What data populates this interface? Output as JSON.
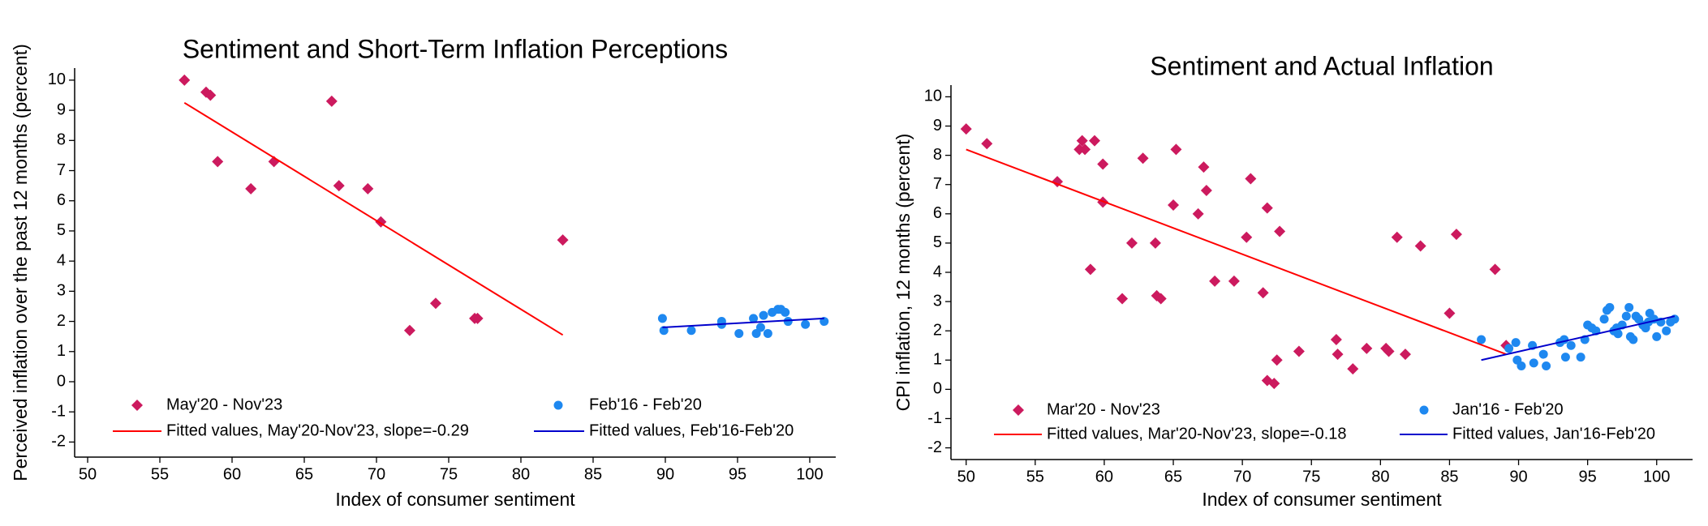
{
  "chart_data": [
    {
      "type": "scatter",
      "title": "Sentiment and Short-Term Inflation Perceptions",
      "x_label": "Index of consumer sentiment",
      "y_label": "Perceived inflation over the past 12 months (percent)",
      "xlim": [
        49.1,
        101.8
      ],
      "ylim": [
        -2.5,
        10.4
      ],
      "xticks": [
        50,
        55,
        60,
        65,
        70,
        75,
        80,
        85,
        90,
        95,
        100
      ],
      "yticks": [
        -2,
        -1,
        0,
        1,
        2,
        3,
        4,
        5,
        6,
        7,
        8,
        9,
        10
      ],
      "series": [
        {
          "name": "May'20 - Nov'23",
          "color": "#cc1a5e",
          "mode": "markers",
          "marker": "diamond",
          "x": [
            56.7,
            58.2,
            58.5,
            59,
            61.3,
            62.9,
            66.9,
            67.4,
            69.4,
            70.3,
            72.3,
            74.1,
            76.8,
            77,
            82.9
          ],
          "values": [
            10,
            9.6,
            9.5,
            7.3,
            6.4,
            7.3,
            9.3,
            6.5,
            6.4,
            5.3,
            1.7,
            2.6,
            2.1,
            2.1,
            4.7
          ]
        },
        {
          "name": "Feb'16 - Feb'20",
          "color": "#1e88f0",
          "mode": "markers",
          "marker": "circle",
          "x": [
            89.8,
            89.9,
            91.8,
            93.9,
            93.9,
            95.1,
            96.1,
            96.3,
            96.6,
            96.8,
            97.1,
            97.4,
            97.8,
            98,
            98.3,
            98.5,
            99.7,
            101
          ],
          "values": [
            2.1,
            1.7,
            1.7,
            2.0,
            1.9,
            1.6,
            2.1,
            1.6,
            1.8,
            2.2,
            1.6,
            2.3,
            2.4,
            2.4,
            2.3,
            2.0,
            1.9,
            2.0
          ]
        },
        {
          "name": "Fitted values, May'20-Nov'23, slope=-0.29",
          "color": "#ff0000",
          "mode": "line",
          "x": [
            56.7,
            82.9
          ],
          "values": [
            9.25,
            1.55
          ]
        },
        {
          "name": "Fitted values, Feb'16-Feb'20",
          "color": "#0000cc",
          "mode": "line",
          "x": [
            89.8,
            101
          ],
          "values": [
            1.8,
            2.1
          ]
        }
      ]
    },
    {
      "type": "scatter",
      "title": "Sentiment and Actual Inflation",
      "x_label": "Index of consumer sentiment",
      "y_label": "CPI inflation, 12 months (percent)",
      "xlim": [
        48.9,
        102.6
      ],
      "ylim": [
        -2.4,
        10.4
      ],
      "xticks": [
        50,
        55,
        60,
        65,
        70,
        75,
        80,
        85,
        90,
        95,
        100
      ],
      "yticks": [
        -2,
        -1,
        0,
        1,
        2,
        3,
        4,
        5,
        6,
        7,
        8,
        9,
        10
      ],
      "series": [
        {
          "name": "Mar'20 - Nov'23",
          "color": "#cc1a5e",
          "mode": "markers",
          "marker": "diamond",
          "x": [
            50,
            51.5,
            56.6,
            58.2,
            58.4,
            58.6,
            59,
            59.3,
            59.9,
            59.9,
            61.3,
            62,
            62.8,
            63.7,
            63.8,
            64.1,
            65,
            65.2,
            66.8,
            67.2,
            67.4,
            68,
            69.4,
            70.3,
            70.6,
            71.5,
            71.8,
            71.8,
            72.3,
            72.5,
            72.7,
            74.1,
            76.8,
            76.9,
            78,
            79,
            80.4,
            80.6,
            81.2,
            81.8,
            82.9,
            85,
            85.5,
            88.3,
            89.1
          ],
          "values": [
            8.9,
            8.4,
            7.1,
            8.2,
            8.5,
            8.2,
            4.1,
            8.5,
            6.4,
            7.7,
            3.1,
            5.0,
            7.9,
            5.0,
            3.2,
            3.1,
            6.3,
            8.2,
            6.0,
            7.6,
            6.8,
            3.7,
            3.7,
            5.2,
            7.2,
            3.3,
            6.2,
            0.3,
            0.2,
            1.0,
            5.4,
            1.3,
            1.7,
            1.2,
            0.7,
            1.4,
            1.4,
            1.3,
            5.2,
            1.2,
            4.9,
            2.6,
            5.3,
            4.1,
            1.5
          ]
        },
        {
          "name": "Jan'16 - Feb'20",
          "color": "#1e88f0",
          "mode": "markers",
          "marker": "circle",
          "x": [
            87.3,
            89.3,
            89.8,
            89.9,
            90.2,
            91,
            91.1,
            91.8,
            92,
            93,
            93.3,
            93.4,
            93.8,
            94.5,
            94.8,
            95,
            95.3,
            95.6,
            96.2,
            96.4,
            96.6,
            96.9,
            97.1,
            97.2,
            97.5,
            97.8,
            98,
            98.1,
            98.3,
            98.5,
            98.7,
            99,
            99.2,
            99.4,
            99.5,
            99.8,
            100,
            100.3,
            100.7,
            101,
            101.3
          ],
          "values": [
            1.7,
            1.4,
            1.6,
            1.0,
            0.8,
            1.5,
            0.9,
            1.2,
            0.8,
            1.6,
            1.7,
            1.1,
            1.5,
            1.1,
            1.7,
            2.2,
            2.1,
            2.0,
            2.4,
            2.7,
            2.8,
            2.0,
            2.1,
            1.9,
            2.2,
            2.5,
            2.8,
            1.8,
            1.7,
            2.5,
            2.4,
            2.2,
            2.1,
            2.3,
            2.6,
            2.4,
            1.8,
            2.3,
            2.0,
            2.3,
            2.4
          ]
        },
        {
          "name": "Fitted values, Mar'20-Nov'23, slope=-0.18",
          "color": "#ff0000",
          "mode": "line",
          "x": [
            50,
            89.1
          ],
          "values": [
            8.2,
            1.2
          ]
        },
        {
          "name": "Fitted values, Jan'16-Feb'20",
          "color": "#0000cc",
          "mode": "line",
          "x": [
            87.3,
            101.3
          ],
          "values": [
            1.0,
            2.5
          ]
        }
      ]
    }
  ]
}
